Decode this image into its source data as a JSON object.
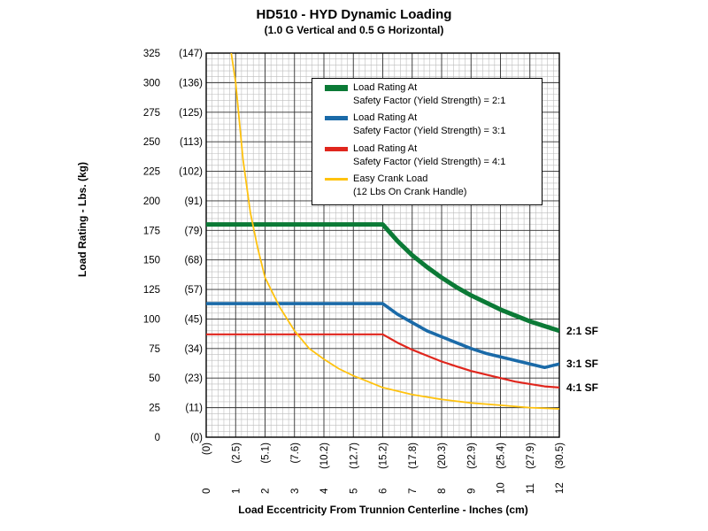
{
  "chart_data": {
    "type": "line",
    "title": "HD510 - HYD Dynamic Loading",
    "subtitle": "(1.0 G Vertical and 0.5 G Horizontal)",
    "xlabel": "Load Eccentricity From Trunnion Centerline - Inches (cm)",
    "ylabel": "Load Rating - Lbs. (kg)",
    "xlim": [
      0,
      12
    ],
    "ylim": [
      0,
      325
    ],
    "x_ticks": [
      "0",
      "1",
      "2",
      "3",
      "4",
      "5",
      "6",
      "7",
      "8",
      "9",
      "10",
      "11",
      "12"
    ],
    "x_ticks_cm": [
      "(0)",
      "(2.5)",
      "(5.1)",
      "(7.6)",
      "(10.2)",
      "(12.7)",
      "(15.2)",
      "(17.8)",
      "(20.3)",
      "(22.9)",
      "(25.4)",
      "(27.9)",
      "(30.5)"
    ],
    "y_ticks": [
      "325",
      "300",
      "275",
      "250",
      "225",
      "200",
      "175",
      "150",
      "125",
      "100",
      "75",
      "50",
      "25",
      "0"
    ],
    "y_ticks_kg": [
      "(147)",
      "(136)",
      "(125)",
      "(113)",
      "(102)",
      "(91)",
      "(79)",
      "(68)",
      "(57)",
      "(45)",
      "(34)",
      "(23)",
      "(11)",
      "(0)"
    ],
    "grid": true,
    "legend_placement": "top-right",
    "series": [
      {
        "name": "Load Rating At\nSafety Factor (Yield Strength) = 2:1",
        "color": "#0b7a36",
        "end_label": "2:1 SF",
        "x": [
          0,
          6,
          6.5,
          7,
          7.5,
          8,
          8.5,
          9,
          9.5,
          10,
          10.5,
          11,
          11.5,
          12
        ],
        "y": [
          180,
          180,
          166,
          154,
          144,
          135,
          127,
          120,
          114,
          108,
          103,
          98,
          94,
          90
        ]
      },
      {
        "name": "Load Rating At\nSafety Factor (Yield Strength) = 3:1",
        "color": "#1a6aa8",
        "end_label": "3:1 SF",
        "x": [
          0,
          6,
          6.5,
          7,
          7.5,
          8,
          8.5,
          9,
          9.5,
          10,
          10.5,
          11,
          11.5,
          12
        ],
        "y": [
          113,
          113,
          104,
          97,
          90,
          85,
          80,
          75,
          71,
          68,
          65,
          62,
          59,
          62
        ]
      },
      {
        "name": "Load Rating At\nSafety Factor (Yield Strength) = 4:1",
        "color": "#e0261d",
        "end_label": "4:1 SF",
        "x": [
          0,
          6,
          6.5,
          7,
          7.5,
          8,
          8.5,
          9,
          9.5,
          10,
          10.5,
          11,
          11.5,
          12
        ],
        "y": [
          87,
          87,
          80,
          74,
          69,
          64,
          60,
          56,
          53,
          50,
          47,
          45,
          43,
          42
        ]
      },
      {
        "name": "Easy Crank Load\n(12 Lbs On Crank Handle)",
        "color": "#ffc20e",
        "end_label": "",
        "x": [
          0.85,
          1,
          1.25,
          1.5,
          1.75,
          2,
          2.5,
          3,
          3.5,
          4,
          4.5,
          5,
          5.5,
          6,
          7,
          8,
          9,
          10,
          11,
          12
        ],
        "y": [
          325,
          300,
          235,
          190,
          160,
          135,
          110,
          90,
          75,
          66,
          58,
          52,
          47,
          42,
          36,
          32,
          29,
          27,
          25,
          24
        ]
      }
    ]
  }
}
